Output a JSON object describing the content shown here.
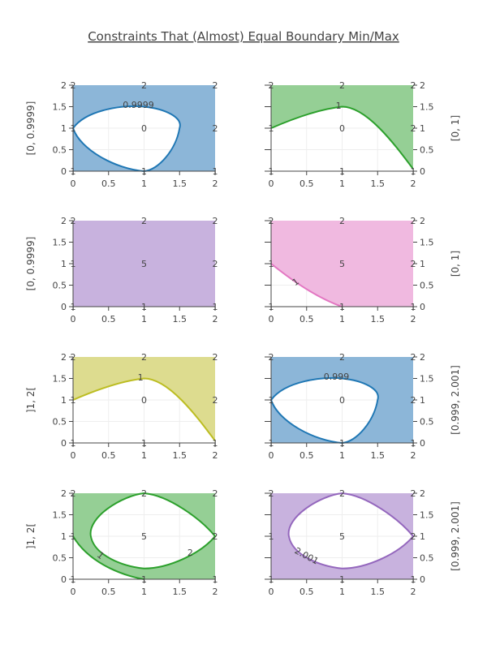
{
  "chart_data": {
    "type": "contour",
    "title": "Constraints That (Almost) Equal Boundary Min/Max",
    "x_ticks": [
      "0",
      "0.5",
      "1",
      "1.5",
      "2"
    ],
    "y_ticks": [
      "0",
      "0.5",
      "1",
      "1.5",
      "2"
    ],
    "xlim": [
      0,
      2
    ],
    "ylim": [
      0,
      2
    ],
    "z_grid_labels": {
      "x": [
        0,
        1,
        2
      ],
      "y": [
        0,
        1,
        2
      ]
    },
    "panels": [
      {
        "id": "p1",
        "y_axis_label": "[0, 0.9999]",
        "y_axis_side": "left",
        "curve": "ellipse",
        "contour_value": 0.9999,
        "contour_label": "0.9999",
        "fill": "inside-out",
        "color": "#1f77b4",
        "fill_color": "#8cb6d8",
        "grid_values": [
          [
            "1",
            "1",
            "1"
          ],
          [
            "1",
            "0",
            "2"
          ],
          [
            "2",
            "2",
            "2"
          ]
        ]
      },
      {
        "id": "p2",
        "y_axis_label": "[0, 1]",
        "y_axis_side": "right",
        "curve": "lower-arc",
        "contour_value": 1,
        "contour_label": "1",
        "fill": "above",
        "color": "#2ca02c",
        "fill_color": "#95cf95",
        "grid_values": [
          [
            "1",
            "1",
            "1"
          ],
          [
            "1",
            "0",
            "2"
          ],
          [
            "2",
            "2",
            "2"
          ]
        ]
      },
      {
        "id": "p3",
        "y_axis_label": "[0, 0.9999]",
        "y_axis_side": "left",
        "curve": "none",
        "contour_value": null,
        "contour_label": "",
        "fill": "all",
        "color": "#9467bd",
        "fill_color": "#c8b2de",
        "grid_values": [
          [
            "1",
            "1",
            "1"
          ],
          [
            "1",
            "5",
            "2"
          ],
          [
            "2",
            "2",
            "2"
          ]
        ]
      },
      {
        "id": "p4",
        "y_axis_label": "[0, 1]",
        "y_axis_side": "right",
        "curve": "corner-arc",
        "contour_value": 1,
        "contour_label": "1",
        "fill": "above",
        "color": "#e377c2",
        "fill_color": "#f0b9e0",
        "grid_values": [
          [
            "1",
            "1",
            "1"
          ],
          [
            "1",
            "5",
            "2"
          ],
          [
            "2",
            "2",
            "2"
          ]
        ]
      },
      {
        "id": "p5",
        "y_axis_label": "]1, 2[",
        "y_axis_side": "left",
        "curve": "lower-arc",
        "contour_value": 1,
        "contour_label": "1",
        "fill": "above",
        "color": "#bcbd22",
        "fill_color": "#dddc8f",
        "grid_values": [
          [
            "1",
            "1",
            "1"
          ],
          [
            "1",
            "0",
            "2"
          ],
          [
            "2",
            "2",
            "2"
          ]
        ]
      },
      {
        "id": "p6",
        "y_axis_label": "[0.999, 2.001]",
        "y_axis_side": "right",
        "curve": "ellipse",
        "contour_value": 0.999,
        "contour_label": "0.999",
        "fill": "outside",
        "color": "#1f77b4",
        "fill_color": "#8cb6d8",
        "grid_values": [
          [
            "1",
            "1",
            "1"
          ],
          [
            "1",
            "0",
            "2"
          ],
          [
            "2",
            "2",
            "2"
          ]
        ]
      },
      {
        "id": "p7",
        "y_axis_label": "]1, 2[",
        "y_axis_side": "left",
        "curve": "two-lines",
        "contour_value": null,
        "contour_label": "",
        "contour_labels": [
          "1",
          "2"
        ],
        "fill": "between-inside",
        "color": "#2ca02c",
        "fill_color": "#95cf95",
        "grid_values": [
          [
            "1",
            "1",
            "1"
          ],
          [
            "1",
            "5",
            "2"
          ],
          [
            "2",
            "2",
            "2"
          ]
        ]
      },
      {
        "id": "p8",
        "y_axis_label": "[0.999, 2.001]",
        "y_axis_side": "right",
        "curve": "ellipse2",
        "contour_value": 2.001,
        "contour_label": "2.001",
        "fill": "outside",
        "color": "#9467bd",
        "fill_color": "#c8b2de",
        "grid_values": [
          [
            "1",
            "1",
            "1"
          ],
          [
            "1",
            "5",
            "2"
          ],
          [
            "2",
            "2",
            "2"
          ]
        ]
      }
    ]
  }
}
